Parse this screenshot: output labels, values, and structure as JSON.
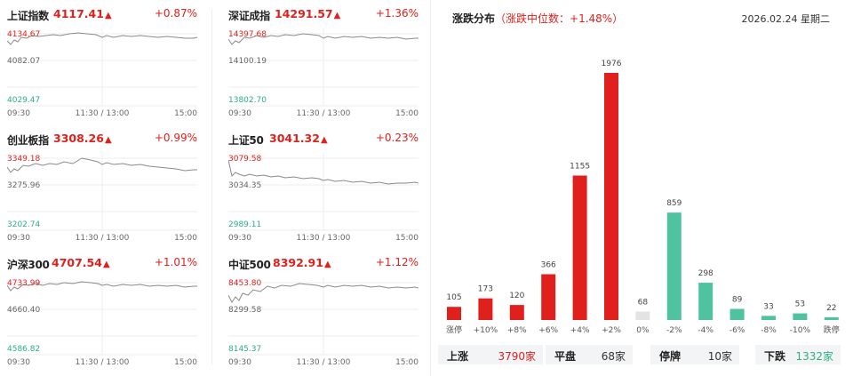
{
  "indices": [
    {
      "name": "上证指数",
      "value": "4117.41",
      "arrow": "▲",
      "pct": "+0.87%",
      "high": "4134.67",
      "mid": "4082.07",
      "low": "4029.47"
    },
    {
      "name": "深证成指",
      "value": "14291.57",
      "arrow": "▲",
      "pct": "+1.36%",
      "high": "14397.68",
      "mid": "14100.19",
      "low": "13802.70"
    },
    {
      "name": "创业板指",
      "value": "3308.26",
      "arrow": "▲",
      "pct": "+0.99%",
      "high": "3349.18",
      "mid": "3275.96",
      "low": "3202.74"
    },
    {
      "name": "上证50",
      "value": "3041.32",
      "arrow": "▲",
      "pct": "+0.23%",
      "high": "3079.58",
      "mid": "3034.35",
      "low": "2989.11"
    },
    {
      "name": "沪深300",
      "value": "4707.54",
      "arrow": "▲",
      "pct": "+1.01%",
      "high": "4733.99",
      "mid": "4660.40",
      "low": "4586.82"
    },
    {
      "name": "中证500",
      "value": "8392.91",
      "arrow": "▲",
      "pct": "+1.12%",
      "high": "8453.80",
      "mid": "8299.58",
      "low": "8145.37"
    }
  ],
  "time_labels": [
    "09:30",
    "11:30 / 13:00",
    "15:00"
  ],
  "distribution": {
    "title": "涨跌分布",
    "subtitle": "（涨跌中位数：+1.48%）",
    "date": "2026.02.24 星期二"
  },
  "chart_data": {
    "type": "bar",
    "categories": [
      "涨停",
      "+10%",
      "+8%",
      "+6%",
      "+4%",
      "+2%",
      "0%",
      "-2%",
      "-4%",
      "-6%",
      "-8%",
      "-10%",
      "跌停"
    ],
    "values": [
      105,
      173,
      120,
      366,
      1155,
      1976,
      68,
      859,
      298,
      89,
      33,
      53,
      22
    ],
    "value_labels": [
      "105",
      "173",
      "120",
      "366",
      "1155",
      "1976",
      "68",
      "859",
      "298",
      "89",
      "33",
      "53",
      "22"
    ],
    "ylim": [
      0,
      1976
    ],
    "colors": [
      "#e0201c",
      "#e0201c",
      "#e0201c",
      "#e0201c",
      "#e0201c",
      "#e0201c",
      "#e3e3e3",
      "#4fc3a0",
      "#4fc3a0",
      "#4fc3a0",
      "#4fc3a0",
      "#4fc3a0",
      "#4fc3a0"
    ],
    "grid": false
  },
  "summary": [
    {
      "label": "上涨",
      "value": "3790家",
      "color": "#e0201c"
    },
    {
      "label": "平盘",
      "value": "68家",
      "color": "#333333"
    },
    {
      "label": "停牌",
      "value": "10家",
      "color": "#333333"
    },
    {
      "label": "下跌",
      "value": "1332家",
      "color": "#2bb07f"
    }
  ],
  "colors": {
    "up": "#e0201c",
    "down": "#2bb07f",
    "line": "#999999"
  }
}
